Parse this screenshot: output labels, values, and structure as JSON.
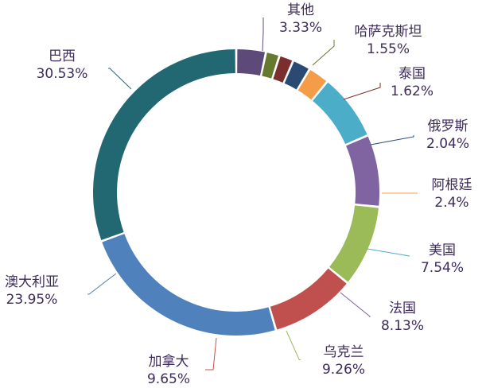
{
  "chart_data": {
    "type": "pie",
    "variant": "donut",
    "title": "",
    "start": "top",
    "direction": "clockwise",
    "legend": "none",
    "slices": [
      {
        "label": "其他",
        "value": 3.33,
        "display": "3.33%",
        "color": "#5e4a7a"
      },
      {
        "label": "哈萨克斯坦",
        "value": 1.55,
        "display": "1.55%",
        "color": "#657a2e"
      },
      {
        "label": "泰国",
        "value": 1.62,
        "display": "1.62%",
        "color": "#7a2e2e"
      },
      {
        "label": "俄罗斯",
        "value": 2.04,
        "display": "2.04%",
        "color": "#2a4a74"
      },
      {
        "label": "阿根廷",
        "value": 2.4,
        "display": "2.4%",
        "color": "#f59c48"
      },
      {
        "label": "美国",
        "value": 7.54,
        "display": "7.54%",
        "color": "#4badc7"
      },
      {
        "label": "法国",
        "value": 8.13,
        "display": "8.13%",
        "color": "#8064a2"
      },
      {
        "label": "乌克兰",
        "value": 9.26,
        "display": "9.26%",
        "color": "#9bbb59"
      },
      {
        "label": "加拿大",
        "value": 9.65,
        "display": "9.65%",
        "color": "#c0504d"
      },
      {
        "label": "澳大利亚",
        "value": 23.95,
        "display": "23.95%",
        "color": "#4f81bd"
      },
      {
        "label": "巴西",
        "value": 30.53,
        "display": "30.53%",
        "color": "#216873"
      }
    ]
  }
}
